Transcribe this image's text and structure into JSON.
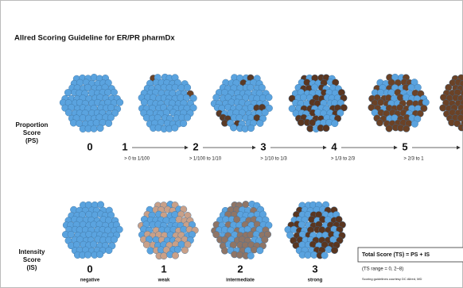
{
  "title": "Allred Scoring Guideline for ER/PR pharmDx",
  "proportion": {
    "label_lines": [
      "Proportion",
      "Score",
      "(PS)"
    ],
    "scores": [
      {
        "score": "0",
        "range": null
      },
      {
        "score": "1",
        "range": "> 0 to 1/100"
      },
      {
        "score": "2",
        "range": "> 1/100 to 1/10"
      },
      {
        "score": "3",
        "range": "> 1/10 to 1/3"
      },
      {
        "score": "4",
        "range": "> 1/3 to 2/3"
      },
      {
        "score": "5",
        "range": "> 2/3 to 1"
      }
    ]
  },
  "intensity": {
    "label_lines": [
      "Intensity",
      "Score",
      "(IS)"
    ],
    "scores": [
      {
        "score": "0",
        "label": "negative"
      },
      {
        "score": "1",
        "label": "weak"
      },
      {
        "score": "2",
        "label": "intermediate"
      },
      {
        "score": "3",
        "label": "strong"
      }
    ]
  },
  "total": {
    "formula": "Total Score (TS) = PS + IS",
    "range": "(TS range = 0, 2–8)",
    "credit": "Scoring guidelines courtesy DC Allred, MD"
  }
}
